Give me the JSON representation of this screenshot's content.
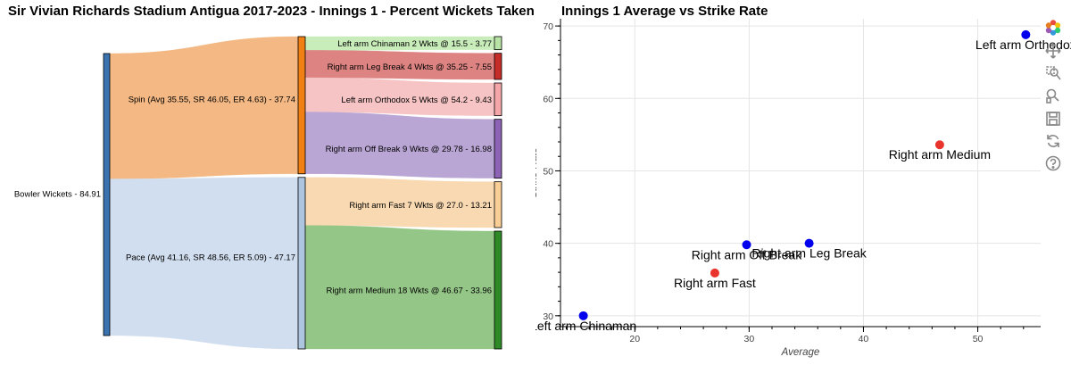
{
  "sankey": {
    "title": "Sir Vivian Richards Stadium Antigua 2017-2023 - Innings 1 - Percent Wickets Taken by Bow",
    "root": {
      "label": "Bowler Wickets - 84.91",
      "value": 84.91,
      "color": "#3a73b0"
    },
    "groups": [
      {
        "label": "Spin (Avg 35.55, SR 46.05, ER 4.63) - 37.74",
        "value": 37.74,
        "node_color": "#f07f14",
        "link_color": "#f2b47c"
      },
      {
        "label": "Pace (Avg 41.16, SR 48.56, ER 5.09) - 47.17",
        "value": 47.17,
        "node_color": "#aec5e0",
        "link_color": "#cfdcee"
      }
    ],
    "leaves": [
      {
        "label": "Left arm Chinaman 2 Wkts @ 15.5 - 3.77",
        "group": 0,
        "value": 3.77,
        "node_color": "#b8e2a6",
        "link_color": "#c6ecb6"
      },
      {
        "label": "Right arm Leg Break 4 Wkts @ 35.25 - 7.55",
        "group": 0,
        "value": 7.55,
        "node_color": "#c62c28",
        "link_color": "#db7d7c"
      },
      {
        "label": "Left arm Orthodox 5 Wkts @ 54.2 - 9.43",
        "group": 0,
        "value": 9.43,
        "node_color": "#f5a6a8",
        "link_color": "#f6c1c1"
      },
      {
        "label": "Right arm Off Break 9 Wkts @ 29.78 - 16.98",
        "group": 0,
        "value": 16.98,
        "node_color": "#8c63b5",
        "link_color": "#b5a1d3"
      },
      {
        "label": "Right arm Fast 7 Wkts @ 27.0 - 13.21",
        "group": 1,
        "value": 13.21,
        "node_color": "#f8cd96",
        "link_color": "#f8d7ae"
      },
      {
        "label": "Right arm Medium 18 Wkts @ 46.67 - 33.96",
        "group": 1,
        "value": 33.96,
        "node_color": "#2e8a26",
        "link_color": "#8ec381"
      }
    ]
  },
  "chart_data": [
    {
      "type": "sankey",
      "title": "Sir Vivian Richards Stadium Antigua 2017-2023 - Innings 1 - Percent Wickets Taken by Bow",
      "flows": [
        {
          "source": "Bowler Wickets",
          "target": "Spin",
          "value": 37.74
        },
        {
          "source": "Bowler Wickets",
          "target": "Pace",
          "value": 47.17
        },
        {
          "source": "Spin",
          "target": "Left arm Chinaman",
          "value": 3.77
        },
        {
          "source": "Spin",
          "target": "Right arm Leg Break",
          "value": 7.55
        },
        {
          "source": "Spin",
          "target": "Left arm Orthodox",
          "value": 9.43
        },
        {
          "source": "Spin",
          "target": "Right arm Off Break",
          "value": 16.98
        },
        {
          "source": "Pace",
          "target": "Right arm Fast",
          "value": 13.21
        },
        {
          "source": "Pace",
          "target": "Right arm Medium",
          "value": 33.96
        }
      ]
    },
    {
      "type": "scatter",
      "title": "Innings 1 Average vs Strike Rate",
      "xlabel": "Average",
      "ylabel": "Strike Rate",
      "xlim": [
        13.5,
        55.5
      ],
      "ylim": [
        28.5,
        71
      ],
      "xticks": [
        20,
        30,
        40,
        50
      ],
      "yticks": [
        30,
        40,
        50,
        60,
        70
      ],
      "grid": true,
      "points": [
        {
          "label": "Left arm Chinaman",
          "x": 15.5,
          "y": 30.0,
          "color": "#0000ee"
        },
        {
          "label": "Right arm Fast",
          "x": 27.0,
          "y": 35.9,
          "color": "#e8342d"
        },
        {
          "label": "Right arm Off Break",
          "x": 29.78,
          "y": 39.8,
          "color": "#0000ee"
        },
        {
          "label": "Right arm Leg Break",
          "x": 35.25,
          "y": 40.0,
          "color": "#0000ee"
        },
        {
          "label": "Right arm Medium",
          "x": 46.67,
          "y": 53.6,
          "color": "#e8342d"
        },
        {
          "label": "Left arm Orthodox",
          "x": 54.2,
          "y": 68.8,
          "color": "#0000ee"
        }
      ]
    }
  ],
  "toolbar": {
    "tools": [
      "bokeh-logo-icon",
      "pan-icon",
      "zoom-icon",
      "wheel-zoom-icon",
      "save-icon",
      "reset-icon",
      "help-icon"
    ]
  }
}
